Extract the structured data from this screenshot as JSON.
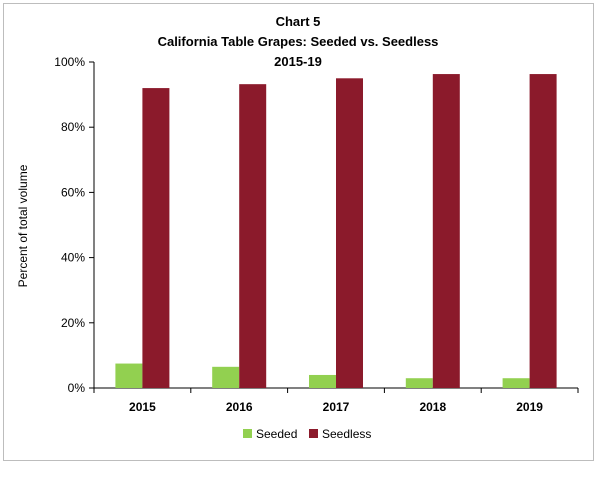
{
  "chart_data": {
    "type": "bar",
    "title_lines": [
      "Chart 5",
      "California Table Grapes:  Seeded vs. Seedless",
      "2015-19"
    ],
    "categories": [
      "2015",
      "2016",
      "2017",
      "2018",
      "2019"
    ],
    "series": [
      {
        "name": "Seeded",
        "color": "#92d050",
        "values": [
          7.5,
          6.5,
          4.0,
          3.0,
          3.0
        ]
      },
      {
        "name": "Seedless",
        "color": "#8b1a2b",
        "values": [
          92.0,
          93.2,
          95.0,
          96.3,
          96.3
        ]
      }
    ],
    "ylabel": "Percent of total volume",
    "xlabel": "",
    "ylim": [
      0,
      100
    ],
    "y_ticks": [
      0,
      20,
      40,
      60,
      80,
      100
    ],
    "y_tick_labels": [
      "0%",
      "20%",
      "40%",
      "60%",
      "80%",
      "100%"
    ],
    "grid": false,
    "legend_position": "bottom"
  }
}
